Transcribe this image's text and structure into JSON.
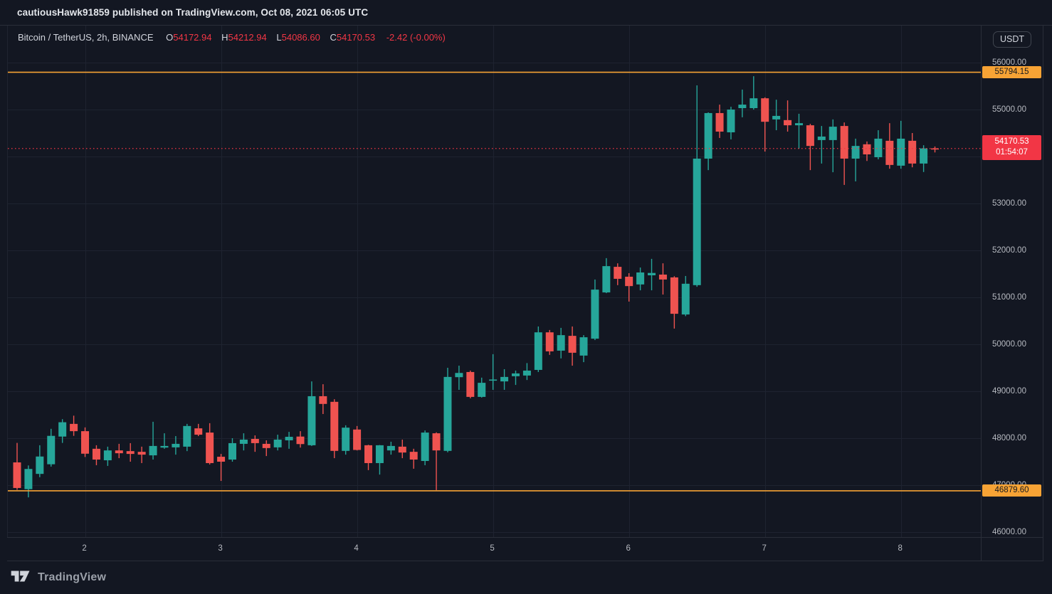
{
  "top_bar": {
    "publish_text": "cautiousHawk91859 published on TradingView.com, Oct 08, 2021 06:05 UTC"
  },
  "legend": {
    "symbol": "Bitcoin / TetherUS, 2h, BINANCE",
    "open_label": "O",
    "open": "54172.94",
    "high_label": "H",
    "high": "54212.94",
    "low_label": "L",
    "low": "54086.60",
    "close_label": "C",
    "close": "54170.53",
    "change": "-2.42 (-0.00%)"
  },
  "price_axis": {
    "currency_button": "USDT",
    "ticks": [
      {
        "label": "56000.00",
        "price": 56000
      },
      {
        "label": "55000.00",
        "price": 55000
      },
      {
        "label": "54000.00",
        "price": 54000
      },
      {
        "label": "53000.00",
        "price": 53000
      },
      {
        "label": "52000.00",
        "price": 52000
      },
      {
        "label": "51000.00",
        "price": 51000
      },
      {
        "label": "50000.00",
        "price": 50000
      },
      {
        "label": "49000.00",
        "price": 49000
      },
      {
        "label": "48000.00",
        "price": 48000
      },
      {
        "label": "47000.00",
        "price": 47000
      },
      {
        "label": "46000.00",
        "price": 46000
      }
    ],
    "high_line_label": "55794.15",
    "low_line_label": "46879.60",
    "last_price_label": "54170.53",
    "countdown": "01:54:07"
  },
  "footer": {
    "brand": "TradingView"
  },
  "colors": {
    "background": "#131722",
    "grid": "#1e2330",
    "up": "#26a69a",
    "down": "#ef5350",
    "accent_red": "#f23645",
    "accent_orange": "#f7a335",
    "text_primary": "#d1d4dc",
    "text_secondary": "#b7bac1"
  },
  "chart_data": {
    "type": "candlestick",
    "title": "Bitcoin / TetherUS, 2h, BINANCE",
    "exchange": "BINANCE",
    "interval": "2h",
    "start_time": "2021-10-01 12:00 UTC",
    "interval_hours": 2,
    "y_axis": {
      "min": 45770,
      "max": 56560,
      "tick_step": 1000,
      "format": "#.00",
      "grid": true
    },
    "x_ticks": [
      {
        "label": "2",
        "candle_index": 6
      },
      {
        "label": "3",
        "candle_index": 18
      },
      {
        "label": "4",
        "candle_index": 30
      },
      {
        "label": "5",
        "candle_index": 42
      },
      {
        "label": "6",
        "candle_index": 54
      },
      {
        "label": "7",
        "candle_index": 66
      },
      {
        "label": "8",
        "candle_index": 78
      }
    ],
    "horizontal_lines": [
      {
        "price": 55794.15,
        "label": "55794.15"
      },
      {
        "price": 46879.6,
        "label": "46879.60"
      }
    ],
    "last_price_line": {
      "price": 54170.53,
      "label": "54170.53",
      "countdown": "01:54:07"
    },
    "candles_format": [
      "open",
      "high",
      "low",
      "close"
    ],
    "candles": [
      [
        47485,
        47900,
        46900,
        46940
      ],
      [
        46915,
        47420,
        46740,
        47345
      ],
      [
        47240,
        47850,
        47170,
        47610
      ],
      [
        47445,
        48200,
        47395,
        48050
      ],
      [
        48035,
        48405,
        47900,
        48340
      ],
      [
        48305,
        48480,
        48050,
        48150
      ],
      [
        48150,
        48230,
        47600,
        47670
      ],
      [
        47775,
        47850,
        47425,
        47545
      ],
      [
        47530,
        47820,
        47410,
        47740
      ],
      [
        47740,
        47880,
        47575,
        47680
      ],
      [
        47725,
        47895,
        47500,
        47665
      ],
      [
        47710,
        47820,
        47470,
        47650
      ],
      [
        47635,
        48350,
        47545,
        47835
      ],
      [
        47800,
        48105,
        47775,
        47835
      ],
      [
        47805,
        48045,
        47650,
        47880
      ],
      [
        47820,
        48305,
        47725,
        48260
      ],
      [
        48210,
        48305,
        48045,
        48075
      ],
      [
        48120,
        48320,
        47440,
        47470
      ],
      [
        47605,
        47665,
        47090,
        47500
      ],
      [
        47545,
        48000,
        47500,
        47895
      ],
      [
        47880,
        48105,
        47740,
        47970
      ],
      [
        47985,
        48060,
        47710,
        47895
      ],
      [
        47880,
        47955,
        47620,
        47790
      ],
      [
        47805,
        48075,
        47740,
        47970
      ],
      [
        47955,
        48135,
        47775,
        48030
      ],
      [
        48035,
        48150,
        47800,
        47875
      ],
      [
        47850,
        49210,
        47835,
        48895
      ],
      [
        48895,
        49150,
        48515,
        48730
      ],
      [
        48775,
        48830,
        47575,
        47730
      ],
      [
        47730,
        48275,
        47650,
        48225
      ],
      [
        48185,
        48260,
        47740,
        47750
      ],
      [
        47850,
        47860,
        47320,
        47470
      ],
      [
        47470,
        47855,
        47225,
        47850
      ],
      [
        47740,
        47925,
        47650,
        47835
      ],
      [
        47820,
        47970,
        47575,
        47695
      ],
      [
        47710,
        47775,
        47350,
        47545
      ],
      [
        47515,
        48165,
        47425,
        48120
      ],
      [
        48105,
        48125,
        46895,
        47740
      ],
      [
        47730,
        49500,
        47700,
        49305
      ],
      [
        49300,
        49545,
        49030,
        49390
      ],
      [
        49410,
        49440,
        48850,
        48880
      ],
      [
        48880,
        49290,
        48865,
        49180
      ],
      [
        49230,
        49790,
        49030,
        49250
      ],
      [
        49210,
        49470,
        49030,
        49305
      ],
      [
        49320,
        49440,
        49135,
        49380
      ],
      [
        49335,
        49600,
        49240,
        49440
      ],
      [
        49455,
        50380,
        49410,
        50255
      ],
      [
        50255,
        50305,
        49775,
        49850
      ],
      [
        49865,
        50350,
        49700,
        50195
      ],
      [
        50180,
        50380,
        49545,
        49820
      ],
      [
        49760,
        50195,
        49620,
        50150
      ],
      [
        50120,
        51380,
        50090,
        51165
      ],
      [
        51105,
        51835,
        51090,
        51665
      ],
      [
        51650,
        51725,
        51260,
        51395
      ],
      [
        51440,
        51515,
        50910,
        51240
      ],
      [
        51275,
        51635,
        51150,
        51530
      ],
      [
        51470,
        51820,
        51150,
        51520
      ],
      [
        51485,
        51725,
        51060,
        51380
      ],
      [
        51425,
        51450,
        50335,
        50650
      ],
      [
        50635,
        51455,
        50600,
        51290
      ],
      [
        51260,
        55515,
        51225,
        53955
      ],
      [
        53955,
        54940,
        53710,
        54925
      ],
      [
        54925,
        55105,
        54395,
        54530
      ],
      [
        54515,
        55060,
        54365,
        55000
      ],
      [
        55030,
        55425,
        54835,
        55105
      ],
      [
        55030,
        55710,
        55000,
        55240
      ],
      [
        55240,
        55260,
        54105,
        54740
      ],
      [
        54790,
        55210,
        54560,
        54865
      ],
      [
        54775,
        55195,
        54530,
        54665
      ],
      [
        54665,
        54910,
        54165,
        54710
      ],
      [
        54665,
        54695,
        53710,
        54225
      ],
      [
        54350,
        54650,
        53850,
        54425
      ],
      [
        54350,
        54790,
        53665,
        54635
      ],
      [
        54650,
        54725,
        53395,
        53955
      ],
      [
        53955,
        54380,
        53470,
        54225
      ],
      [
        54260,
        54320,
        53905,
        54045
      ],
      [
        53985,
        54560,
        53940,
        54380
      ],
      [
        54335,
        54710,
        53740,
        53820
      ],
      [
        53805,
        54760,
        53740,
        54380
      ],
      [
        54335,
        54500,
        53770,
        53850
      ],
      [
        53850,
        54240,
        53670,
        54173
      ],
      [
        54172.94,
        54212.94,
        54086.6,
        54170.53
      ]
    ]
  }
}
